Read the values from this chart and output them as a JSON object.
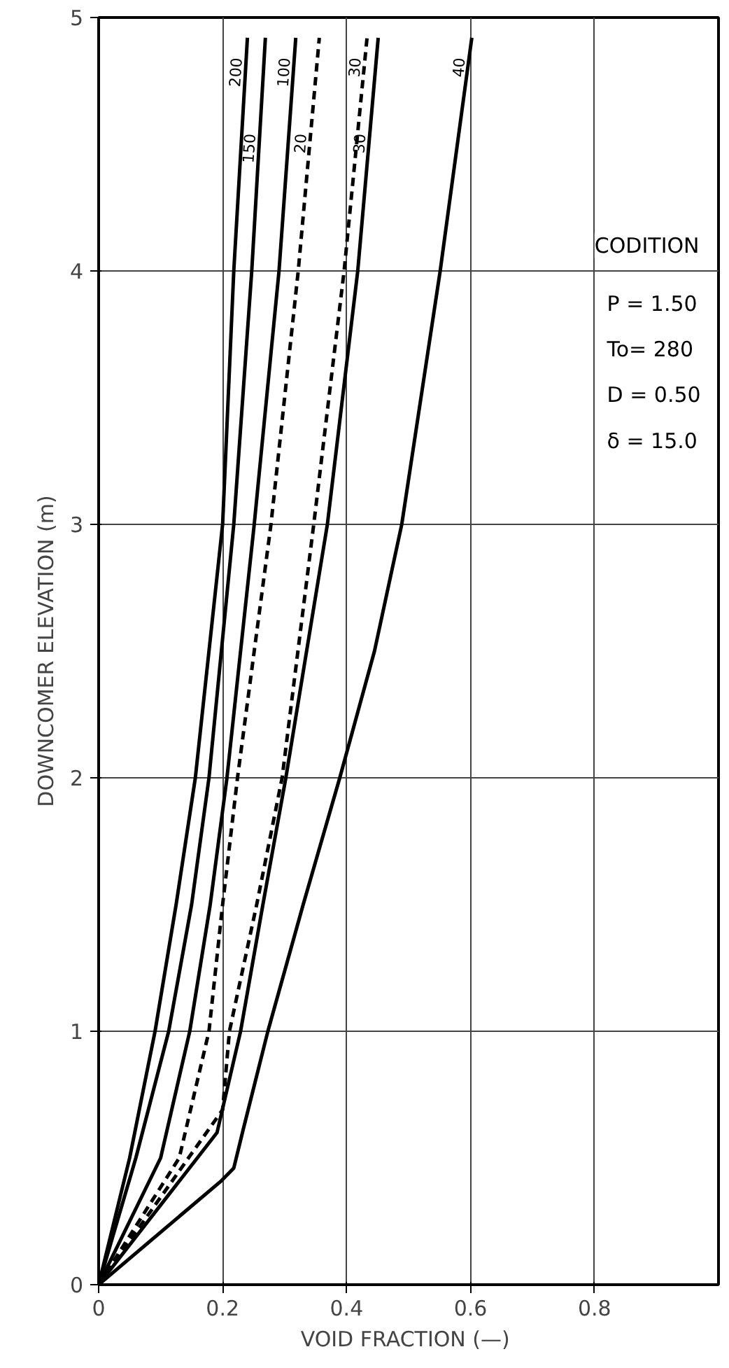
{
  "chart_data": {
    "type": "line",
    "xlabel": "VOID  FRACTION (—)",
    "ylabel": "DOWNCOMER ELEVATION (m)",
    "xlim": [
      0,
      1.0
    ],
    "ylim": [
      0,
      5
    ],
    "xticks": [
      0,
      {
        "value": 0.2,
        "label": "0.2"
      },
      0.4,
      0.6,
      0.8
    ],
    "yticks": [
      0,
      1,
      2,
      3,
      4,
      5
    ],
    "grid": true,
    "marker": "none",
    "series": [
      {
        "name": "200",
        "color": "#000000",
        "line_style": "solid",
        "x": [
          0,
          0.05,
          0.091,
          0.125,
          0.156,
          0.2,
          0.218,
          0.24
        ],
        "values": [
          0,
          0.5,
          1,
          1.5,
          2,
          3,
          4,
          4.92
        ]
      },
      {
        "name": "150",
        "color": "#000000",
        "line_style": "solid",
        "x": [
          0,
          0.06,
          0.113,
          0.15,
          0.178,
          0.218,
          0.247,
          0.269
        ],
        "values": [
          0,
          0.5,
          1,
          1.5,
          2,
          3,
          4,
          4.92
        ]
      },
      {
        "name": "100",
        "color": "#000000",
        "line_style": "solid",
        "x": [
          0,
          0.1,
          0.147,
          0.18,
          0.207,
          0.251,
          0.291,
          0.318
        ],
        "values": [
          0,
          0.5,
          1,
          1.5,
          2,
          3,
          4,
          4.92
        ]
      },
      {
        "name": "20",
        "color": "#000000",
        "line_style": "dashed",
        "x": [
          0,
          0.13,
          0.178,
          0.2,
          0.224,
          0.278,
          0.322,
          0.356
        ],
        "values": [
          0,
          0.5,
          1,
          1.5,
          2,
          3,
          4,
          4.92
        ]
      },
      {
        "name": "30",
        "color": "#000000",
        "line_style": "dashed",
        "x": [
          0,
          0.2,
          0.211,
          0.255,
          0.296,
          0.347,
          0.396,
          0.433
        ],
        "values": [
          0,
          0.69,
          1,
          1.5,
          2,
          3,
          4,
          4.92
        ]
      },
      {
        "name": "30",
        "color": "#000000",
        "line_style": "solid",
        "x": [
          0,
          0.191,
          0.229,
          0.265,
          0.302,
          0.369,
          0.418,
          0.451
        ],
        "values": [
          0,
          0.6,
          1,
          1.5,
          2,
          3,
          4,
          4.92
        ]
      },
      {
        "name": "40",
        "color": "#000000",
        "line_style": "solid",
        "x": [
          0,
          0.198,
          0.218,
          0.233,
          0.273,
          0.33,
          0.389,
          0.445,
          0.489,
          0.551,
          0.602
        ],
        "values": [
          0,
          0.41,
          0.46,
          0.61,
          1,
          1.5,
          2,
          2.5,
          3,
          4,
          4.92
        ]
      }
    ],
    "annotations": [
      "CODITION",
      "P = 1.50",
      "To= 280",
      "D = 0.50",
      "δ = 15.0"
    ]
  }
}
